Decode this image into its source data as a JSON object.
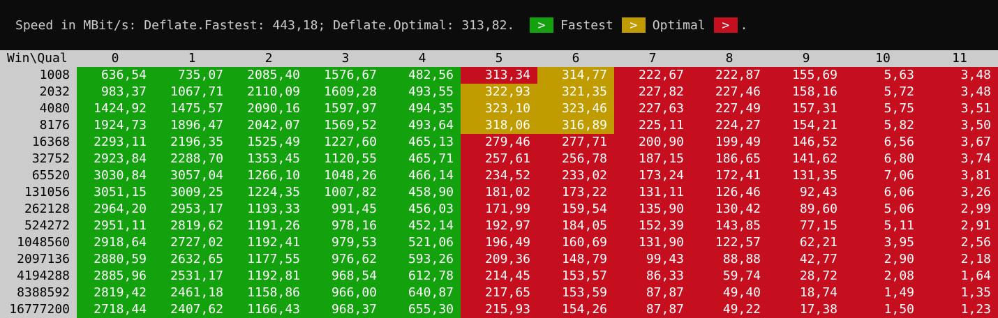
{
  "header": {
    "text": "Speed in MBit/s: Deflate.Fastest: 443,18; Deflate.Optimal: 313,82.",
    "legend": [
      {
        "symbol": ">",
        "label": "Fastest",
        "color": "#13a10e"
      },
      {
        "symbol": ">",
        "label": "Optimal",
        "color": "#c19c00"
      },
      {
        "symbol": ">",
        "label": "",
        "color": "#c50f1f"
      }
    ],
    "trailing": "."
  },
  "table": {
    "corner": "Win\\Qual",
    "columns": [
      "0",
      "1",
      "2",
      "3",
      "4",
      "5",
      "6",
      "7",
      "8",
      "9",
      "10",
      "11"
    ],
    "colors": {
      "fastest": "#13a10e",
      "optimal": "#c19c00",
      "slower": "#c50f1f"
    },
    "rows": [
      {
        "label": "1008",
        "values": [
          "636,54",
          "735,07",
          "2085,40",
          "1576,67",
          "482,56",
          "313,34",
          "314,77",
          "222,67",
          "222,87",
          "155,69",
          "5,63",
          "3,48"
        ],
        "classes": [
          "f",
          "f",
          "f",
          "f",
          "f",
          "s",
          "o",
          "s",
          "s",
          "s",
          "s",
          "s"
        ]
      },
      {
        "label": "2032",
        "values": [
          "983,37",
          "1067,71",
          "2110,09",
          "1609,28",
          "493,55",
          "322,93",
          "321,35",
          "227,82",
          "227,46",
          "158,16",
          "5,72",
          "3,48"
        ],
        "classes": [
          "f",
          "f",
          "f",
          "f",
          "f",
          "o",
          "o",
          "s",
          "s",
          "s",
          "s",
          "s"
        ]
      },
      {
        "label": "4080",
        "values": [
          "1424,92",
          "1475,57",
          "2090,16",
          "1597,97",
          "494,35",
          "323,10",
          "323,46",
          "227,63",
          "227,49",
          "157,31",
          "5,75",
          "3,51"
        ],
        "classes": [
          "f",
          "f",
          "f",
          "f",
          "f",
          "o",
          "o",
          "s",
          "s",
          "s",
          "s",
          "s"
        ]
      },
      {
        "label": "8176",
        "values": [
          "1924,73",
          "1896,47",
          "2042,07",
          "1569,52",
          "493,64",
          "318,06",
          "316,89",
          "225,11",
          "224,27",
          "154,21",
          "5,82",
          "3,50"
        ],
        "classes": [
          "f",
          "f",
          "f",
          "f",
          "f",
          "o",
          "o",
          "s",
          "s",
          "s",
          "s",
          "s"
        ]
      },
      {
        "label": "16368",
        "values": [
          "2293,11",
          "2196,35",
          "1525,49",
          "1227,60",
          "465,13",
          "279,46",
          "277,71",
          "200,90",
          "199,49",
          "146,52",
          "6,56",
          "3,67"
        ],
        "classes": [
          "f",
          "f",
          "f",
          "f",
          "f",
          "s",
          "s",
          "s",
          "s",
          "s",
          "s",
          "s"
        ]
      },
      {
        "label": "32752",
        "values": [
          "2923,84",
          "2288,70",
          "1353,45",
          "1120,55",
          "465,71",
          "257,61",
          "256,78",
          "187,15",
          "186,65",
          "141,62",
          "6,80",
          "3,74"
        ],
        "classes": [
          "f",
          "f",
          "f",
          "f",
          "f",
          "s",
          "s",
          "s",
          "s",
          "s",
          "s",
          "s"
        ]
      },
      {
        "label": "65520",
        "values": [
          "3030,84",
          "3057,04",
          "1266,10",
          "1048,26",
          "466,14",
          "234,52",
          "233,02",
          "173,24",
          "172,41",
          "131,35",
          "7,06",
          "3,81"
        ],
        "classes": [
          "f",
          "f",
          "f",
          "f",
          "f",
          "s",
          "s",
          "s",
          "s",
          "s",
          "s",
          "s"
        ]
      },
      {
        "label": "131056",
        "values": [
          "3051,15",
          "3009,25",
          "1224,35",
          "1007,82",
          "458,90",
          "181,02",
          "173,22",
          "131,11",
          "126,46",
          "92,43",
          "6,06",
          "3,26"
        ],
        "classes": [
          "f",
          "f",
          "f",
          "f",
          "f",
          "s",
          "s",
          "s",
          "s",
          "s",
          "s",
          "s"
        ]
      },
      {
        "label": "262128",
        "values": [
          "2964,20",
          "2953,17",
          "1193,33",
          "991,45",
          "456,03",
          "171,99",
          "159,54",
          "135,90",
          "130,42",
          "89,60",
          "5,06",
          "2,99"
        ],
        "classes": [
          "f",
          "f",
          "f",
          "f",
          "f",
          "s",
          "s",
          "s",
          "s",
          "s",
          "s",
          "s"
        ]
      },
      {
        "label": "524272",
        "values": [
          "2951,11",
          "2819,62",
          "1191,26",
          "978,16",
          "452,14",
          "192,97",
          "184,05",
          "152,39",
          "143,85",
          "77,15",
          "5,11",
          "2,91"
        ],
        "classes": [
          "f",
          "f",
          "f",
          "f",
          "f",
          "s",
          "s",
          "s",
          "s",
          "s",
          "s",
          "s"
        ]
      },
      {
        "label": "1048560",
        "values": [
          "2918,64",
          "2727,02",
          "1192,41",
          "979,53",
          "521,06",
          "196,49",
          "160,69",
          "131,90",
          "122,57",
          "62,21",
          "3,95",
          "2,56"
        ],
        "classes": [
          "f",
          "f",
          "f",
          "f",
          "f",
          "s",
          "s",
          "s",
          "s",
          "s",
          "s",
          "s"
        ]
      },
      {
        "label": "2097136",
        "values": [
          "2880,59",
          "2632,65",
          "1177,55",
          "976,62",
          "593,26",
          "209,36",
          "148,79",
          "99,43",
          "88,88",
          "42,77",
          "2,90",
          "2,18"
        ],
        "classes": [
          "f",
          "f",
          "f",
          "f",
          "f",
          "s",
          "s",
          "s",
          "s",
          "s",
          "s",
          "s"
        ]
      },
      {
        "label": "4194288",
        "values": [
          "2885,96",
          "2531,17",
          "1192,81",
          "968,54",
          "612,78",
          "214,45",
          "153,57",
          "86,33",
          "59,74",
          "28,72",
          "2,08",
          "1,64"
        ],
        "classes": [
          "f",
          "f",
          "f",
          "f",
          "f",
          "s",
          "s",
          "s",
          "s",
          "s",
          "s",
          "s"
        ]
      },
      {
        "label": "8388592",
        "values": [
          "2819,42",
          "2461,18",
          "1158,86",
          "966,00",
          "640,87",
          "217,65",
          "153,59",
          "87,87",
          "49,40",
          "18,74",
          "1,49",
          "1,35"
        ],
        "classes": [
          "f",
          "f",
          "f",
          "f",
          "f",
          "s",
          "s",
          "s",
          "s",
          "s",
          "s",
          "s"
        ]
      },
      {
        "label": "16777200",
        "values": [
          "2718,44",
          "2407,62",
          "1166,43",
          "968,37",
          "655,30",
          "215,93",
          "154,26",
          "87,87",
          "49,22",
          "17,38",
          "1,50",
          "1,23"
        ],
        "classes": [
          "f",
          "f",
          "f",
          "f",
          "f",
          "s",
          "s",
          "s",
          "s",
          "s",
          "s",
          "s"
        ]
      }
    ]
  }
}
